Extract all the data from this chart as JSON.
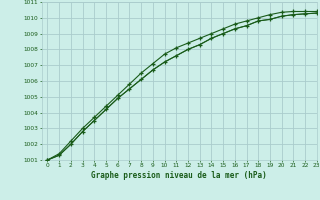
{
  "title": "Graphe pression niveau de la mer (hPa)",
  "bg_color": "#cceee8",
  "grid_color": "#aacccc",
  "line_color": "#1a5c1a",
  "xlim": [
    -0.5,
    23
  ],
  "ylim": [
    1001,
    1011
  ],
  "xticks": [
    0,
    1,
    2,
    3,
    4,
    5,
    6,
    7,
    8,
    9,
    10,
    11,
    12,
    13,
    14,
    15,
    16,
    17,
    18,
    19,
    20,
    21,
    22,
    23
  ],
  "yticks": [
    1001,
    1002,
    1003,
    1004,
    1005,
    1006,
    1007,
    1008,
    1009,
    1010,
    1011
  ],
  "line1_x": [
    0,
    1,
    2,
    3,
    4,
    5,
    6,
    7,
    8,
    9,
    10,
    11,
    12,
    13,
    14,
    15,
    16,
    17,
    18,
    19,
    20,
    21,
    22,
    23
  ],
  "line1_y": [
    1001.0,
    1001.4,
    1002.2,
    1003.0,
    1003.7,
    1004.4,
    1005.1,
    1005.8,
    1006.5,
    1007.1,
    1007.7,
    1008.1,
    1008.4,
    1008.7,
    1009.0,
    1009.3,
    1009.6,
    1009.8,
    1010.0,
    1010.2,
    1010.35,
    1010.4,
    1010.4,
    1010.4
  ],
  "line2_x": [
    0,
    1,
    2,
    3,
    4,
    5,
    6,
    7,
    8,
    9,
    10,
    11,
    12,
    13,
    14,
    15,
    16,
    17,
    18,
    19,
    20,
    21,
    22,
    23
  ],
  "line2_y": [
    1001.0,
    1001.3,
    1002.0,
    1002.8,
    1003.5,
    1004.2,
    1004.9,
    1005.5,
    1006.1,
    1006.7,
    1007.2,
    1007.6,
    1008.0,
    1008.3,
    1008.7,
    1009.0,
    1009.3,
    1009.5,
    1009.8,
    1009.9,
    1010.1,
    1010.2,
    1010.25,
    1010.3
  ],
  "line3_x": [
    0,
    1,
    2,
    3,
    4,
    5,
    6,
    7,
    8,
    9,
    10,
    11,
    12,
    13,
    14,
    15,
    16,
    17,
    18,
    19,
    20,
    21,
    22,
    23
  ],
  "line3_y": [
    1001.0,
    1001.3,
    1002.0,
    1002.8,
    1003.5,
    1004.2,
    1004.9,
    1005.5,
    1006.1,
    1006.7,
    1007.2,
    1007.6,
    1008.0,
    1008.3,
    1008.7,
    1009.0,
    1009.3,
    1009.5,
    1009.8,
    1009.9,
    1010.1,
    1010.2,
    1010.25,
    1010.3
  ]
}
